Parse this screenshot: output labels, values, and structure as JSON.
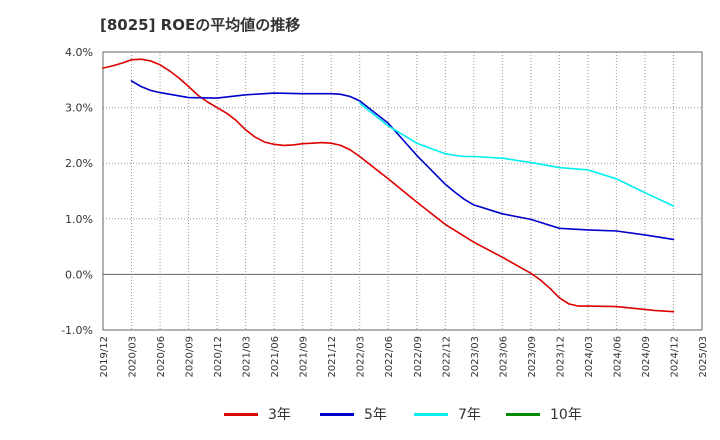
{
  "title": "[8025]  ROEの平均値の推移",
  "chart_data": {
    "type": "line",
    "title": "[8025]  ROEの平均値の推移",
    "xlabel": "",
    "ylabel": "",
    "ylim": [
      -1.0,
      4.0
    ],
    "y_ticks": [
      "-1.0%",
      "0.0%",
      "1.0%",
      "2.0%",
      "3.0%",
      "4.0%"
    ],
    "x_ticks": [
      "2019/12",
      "2020/03",
      "2020/06",
      "2020/09",
      "2020/12",
      "2021/03",
      "2021/06",
      "2021/09",
      "2021/12",
      "2022/03",
      "2022/06",
      "2022/09",
      "2022/12",
      "2023/03",
      "2023/06",
      "2023/09",
      "2023/12",
      "2024/03",
      "2024/06",
      "2024/09",
      "2024/12",
      "2025/03"
    ],
    "grid": true,
    "legend_position": "bottom",
    "series": [
      {
        "name": "3年",
        "color": "#dd0000",
        "x": [
          "2019/12",
          "2020/01",
          "2020/02",
          "2020/03",
          "2020/04",
          "2020/05",
          "2020/06",
          "2020/07",
          "2020/08",
          "2020/09",
          "2020/10",
          "2020/11",
          "2020/12",
          "2021/01",
          "2021/02",
          "2021/03",
          "2021/04",
          "2021/05",
          "2021/06",
          "2021/07",
          "2021/08",
          "2021/09",
          "2021/10",
          "2021/11",
          "2021/12",
          "2022/01",
          "2022/02",
          "2022/03",
          "2022/06",
          "2022/09",
          "2022/12",
          "2023/03",
          "2023/06",
          "2023/09",
          "2023/10",
          "2023/11",
          "2023/12",
          "2024/01",
          "2024/02",
          "2024/03",
          "2024/06",
          "2024/09",
          "2024/10",
          "2024/11",
          "2024/12"
        ],
        "values": [
          3.71,
          3.75,
          3.8,
          3.86,
          3.87,
          3.84,
          3.77,
          3.66,
          3.53,
          3.38,
          3.22,
          3.1,
          3.0,
          2.9,
          2.77,
          2.6,
          2.47,
          2.38,
          2.34,
          2.32,
          2.33,
          2.35,
          2.36,
          2.37,
          2.36,
          2.32,
          2.24,
          2.12,
          1.72,
          1.3,
          0.9,
          0.58,
          0.31,
          0.02,
          -0.1,
          -0.25,
          -0.42,
          -0.53,
          -0.57,
          -0.57,
          -0.58,
          -0.63,
          -0.65,
          -0.66,
          -0.67
        ]
      },
      {
        "name": "5年",
        "color": "#0000cc",
        "x": [
          "2020/03",
          "2020/04",
          "2020/05",
          "2020/06",
          "2020/09",
          "2020/12",
          "2021/03",
          "2021/06",
          "2021/09",
          "2021/12",
          "2022/01",
          "2022/02",
          "2022/03",
          "2022/06",
          "2022/09",
          "2022/12",
          "2023/01",
          "2023/02",
          "2023/03",
          "2023/06",
          "2023/09",
          "2023/12",
          "2024/03",
          "2024/06",
          "2024/09",
          "2024/12"
        ],
        "values": [
          3.48,
          3.38,
          3.31,
          3.27,
          3.18,
          3.17,
          3.23,
          3.26,
          3.25,
          3.25,
          3.24,
          3.2,
          3.12,
          2.72,
          2.14,
          1.62,
          1.48,
          1.35,
          1.25,
          1.09,
          0.99,
          0.83,
          0.8,
          0.78,
          0.71,
          0.63
        ]
      },
      {
        "name": "7年",
        "color": "#00eeee",
        "x": [
          "2022/03",
          "2022/06",
          "2022/09",
          "2022/12",
          "2023/01",
          "2023/02",
          "2023/03",
          "2023/06",
          "2023/09",
          "2023/12",
          "2024/03",
          "2024/06",
          "2024/09",
          "2024/12"
        ],
        "values": [
          3.08,
          2.67,
          2.36,
          2.17,
          2.14,
          2.12,
          2.12,
          2.09,
          2.01,
          1.92,
          1.88,
          1.72,
          1.47,
          1.23
        ]
      },
      {
        "name": "10年",
        "color": "#008800",
        "x": [],
        "values": []
      }
    ]
  }
}
